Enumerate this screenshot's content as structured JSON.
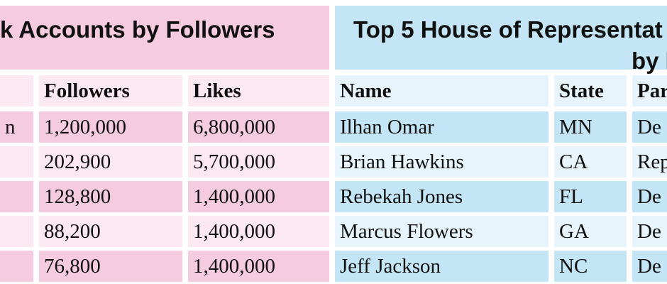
{
  "facebook_table": {
    "title": "k Accounts by Followers",
    "columns": [
      "",
      "Followers",
      "Likes"
    ],
    "rows": [
      {
        "name": "n",
        "followers": "1,200,000",
        "likes": "6,800,000"
      },
      {
        "name": "",
        "followers": "202,900",
        "likes": "5,700,000"
      },
      {
        "name": "",
        "followers": "128,800",
        "likes": "1,400,000"
      },
      {
        "name": "",
        "followers": "88,200",
        "likes": "1,400,000"
      },
      {
        "name": "",
        "followers": "76,800",
        "likes": "1,400,000"
      }
    ]
  },
  "house_table": {
    "title_line1": "Top 5 House of Representat",
    "title_line2": "by F",
    "columns": [
      "Name",
      "State",
      "Par"
    ],
    "rows": [
      {
        "name": "Ilhan Omar",
        "state": "MN",
        "party": "De"
      },
      {
        "name": "Brian Hawkins",
        "state": "CA",
        "party": "Rep"
      },
      {
        "name": "Rebekah Jones",
        "state": "FL",
        "party": "De"
      },
      {
        "name": "Marcus Flowers",
        "state": "GA",
        "party": "De"
      },
      {
        "name": "Jeff Jackson",
        "state": "NC",
        "party": "De"
      }
    ]
  }
}
